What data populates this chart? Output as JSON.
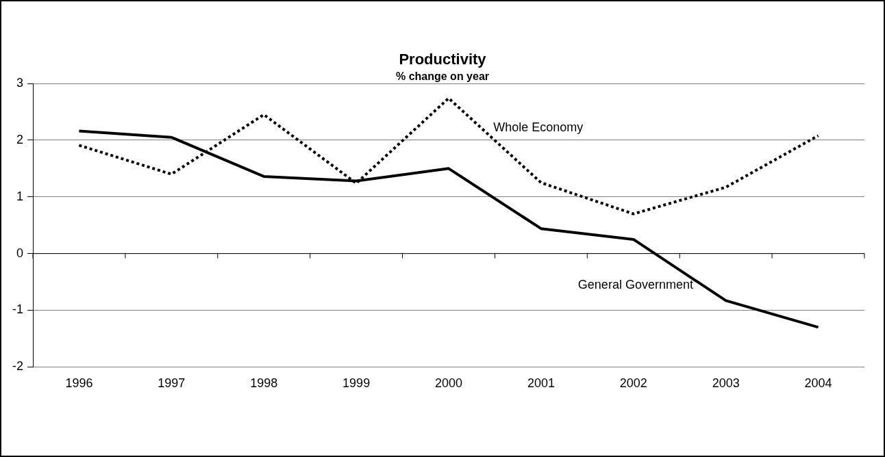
{
  "chart_data": {
    "type": "line",
    "title": "Productivity",
    "subtitle": "% change on year",
    "categories": [
      "1996",
      "1997",
      "1998",
      "1999",
      "2000",
      "2001",
      "2002",
      "2003",
      "2004"
    ],
    "series": [
      {
        "name": "General Government",
        "color": "#000000",
        "line_style": "solid",
        "values": [
          2.16,
          2.05,
          1.36,
          1.28,
          1.5,
          0.44,
          0.25,
          -0.83,
          -1.3
        ]
      },
      {
        "name": "Whole Economy",
        "color": "#000000",
        "line_style": "dotted",
        "values": [
          1.91,
          1.4,
          2.45,
          1.24,
          2.74,
          1.25,
          0.7,
          1.17,
          2.08
        ]
      }
    ],
    "ylim": [
      -2,
      3
    ],
    "yticks": [
      -2,
      -1,
      0,
      1,
      2,
      3
    ],
    "grid": "y",
    "legend": false,
    "marker": "none"
  }
}
